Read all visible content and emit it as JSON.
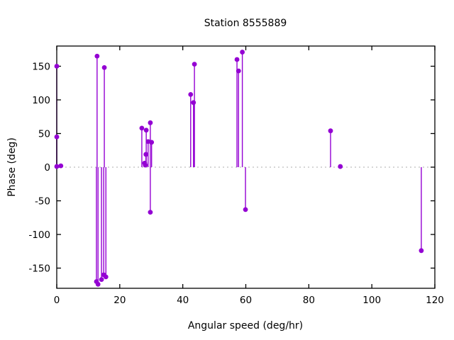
{
  "chart_data": {
    "type": "scatter",
    "subtype": "impulses-with-points",
    "title": "Station 8555889",
    "xlabel": "Angular speed (deg/hr)",
    "ylabel": "Phase (deg)",
    "xlim": [
      0,
      120
    ],
    "ylim": [
      -180,
      180
    ],
    "x_ticks": [
      0,
      20,
      40,
      60,
      80,
      100,
      120
    ],
    "y_ticks": [
      -150,
      -100,
      -50,
      0,
      50,
      100,
      150
    ],
    "grid": "dotted horizontal line at y=0 only",
    "legend": "none",
    "style": {
      "point_color": "#9400d3",
      "stem_color": "#9400d3",
      "border_color": "#000000",
      "zero_line_color": "#adadad",
      "background": "#ffffff",
      "point_radius": 3.4,
      "stem_width": 1.4
    },
    "points": [
      {
        "x": 0.0,
        "y": 150
      },
      {
        "x": 0.0,
        "y": 45
      },
      {
        "x": 0.0,
        "y": 1
      },
      {
        "x": 1.3,
        "y": 2
      },
      {
        "x": 12.8,
        "y": 165
      },
      {
        "x": 15.1,
        "y": 148
      },
      {
        "x": 12.6,
        "y": -170
      },
      {
        "x": 13.1,
        "y": -174
      },
      {
        "x": 14.2,
        "y": -167
      },
      {
        "x": 14.9,
        "y": -160
      },
      {
        "x": 15.6,
        "y": -163
      },
      {
        "x": 27.0,
        "y": 58
      },
      {
        "x": 27.9,
        "y": 6
      },
      {
        "x": 28.1,
        "y": 3
      },
      {
        "x": 28.3,
        "y": 19
      },
      {
        "x": 28.4,
        "y": 55
      },
      {
        "x": 29.0,
        "y": 38
      },
      {
        "x": 29.7,
        "y": 66
      },
      {
        "x": 29.7,
        "y": -67
      },
      {
        "x": 30.1,
        "y": 37
      },
      {
        "x": 42.5,
        "y": 108
      },
      {
        "x": 43.4,
        "y": 96
      },
      {
        "x": 43.7,
        "y": 153
      },
      {
        "x": 57.2,
        "y": 160
      },
      {
        "x": 57.7,
        "y": 143
      },
      {
        "x": 58.9,
        "y": 171
      },
      {
        "x": 59.9,
        "y": -63
      },
      {
        "x": 86.9,
        "y": 54
      },
      {
        "x": 90.0,
        "y": 1
      },
      {
        "x": 115.7,
        "y": -124
      }
    ]
  }
}
